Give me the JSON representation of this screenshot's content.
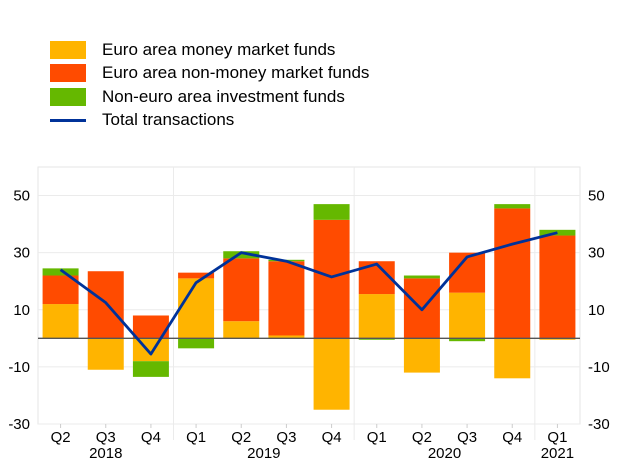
{
  "colors": {
    "mmf": "#FFB400",
    "non_mmf": "#FF4B00",
    "non_euro": "#65B800",
    "total": "#003299"
  },
  "chart_data": {
    "type": "bar",
    "stacked": true,
    "categories": [
      "Q2",
      "Q3",
      "Q4",
      "Q1",
      "Q2",
      "Q3",
      "Q4",
      "Q1",
      "Q2",
      "Q3",
      "Q4",
      "Q1"
    ],
    "years": [
      {
        "label": "2018",
        "span": [
          0,
          2
        ]
      },
      {
        "label": "2019",
        "span": [
          3,
          6
        ]
      },
      {
        "label": "2020",
        "span": [
          7,
          10
        ]
      },
      {
        "label": "2021",
        "span": [
          11,
          11
        ]
      }
    ],
    "series": [
      {
        "name": "Euro area money market funds",
        "key": "mmf",
        "values": [
          12,
          -11,
          -8,
          21,
          6,
          1,
          -25,
          15.5,
          -12,
          16,
          -14,
          -0.5
        ]
      },
      {
        "name": "Euro area non-money market funds",
        "key": "non_mmf",
        "values": [
          10,
          23.5,
          8,
          2,
          22,
          26,
          41.5,
          11.5,
          21,
          14,
          45.5,
          36
        ]
      },
      {
        "name": "Non-euro area investment funds",
        "key": "non_euro",
        "values": [
          2.5,
          0,
          -5.5,
          -3.5,
          2.5,
          0.5,
          5.5,
          -0.5,
          1,
          -1,
          1.5,
          2
        ]
      },
      {
        "name": "Total transactions",
        "key": "total",
        "type": "line",
        "values": [
          24,
          12.5,
          -5.5,
          19.5,
          30,
          27,
          21.5,
          26,
          10,
          28.5,
          33,
          37
        ]
      }
    ],
    "yticks": [
      50,
      30,
      10,
      -10,
      -30
    ],
    "ylim": [
      -30,
      60
    ],
    "legend": "top-left",
    "grid": true
  }
}
